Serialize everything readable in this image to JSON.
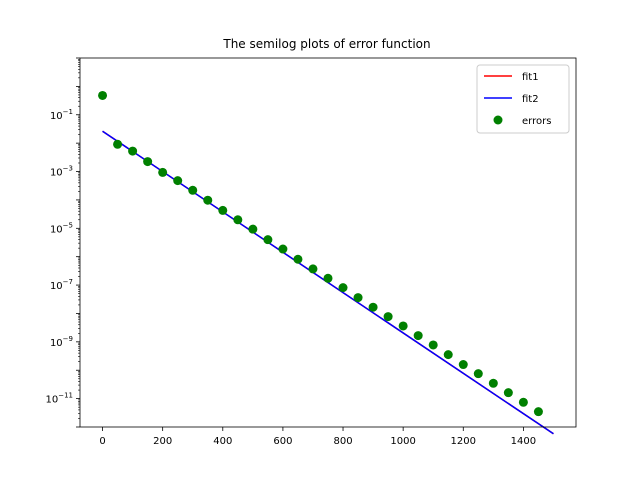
{
  "chart_data": {
    "type": "line",
    "title": "The semilog plots of error function",
    "xlabel": "",
    "ylabel": "",
    "xlim": [
      -75,
      1575
    ],
    "ylim": [
      1e-12,
      10
    ],
    "yscale": "log",
    "grid": false,
    "legend_position": "top-right",
    "x_ticks": [
      0,
      200,
      400,
      600,
      800,
      1000,
      1200,
      1400
    ],
    "x_tick_labels": [
      "0",
      "200",
      "400",
      "600",
      "800",
      "1000",
      "1200",
      "1400"
    ],
    "y_ticks": [
      -11,
      -9,
      -7,
      -5,
      -3,
      -1
    ],
    "y_tick_labels": [
      {
        "base": "10",
        "exp": "−11"
      },
      {
        "base": "10",
        "exp": "−9"
      },
      {
        "base": "10",
        "exp": "−7"
      },
      {
        "base": "10",
        "exp": "−5"
      },
      {
        "base": "10",
        "exp": "−3"
      },
      {
        "base": "10",
        "exp": "−1"
      }
    ],
    "series": [
      {
        "name": "fit1",
        "kind": "line",
        "color": "#ff0000",
        "x": [
          0,
          1500
        ],
        "log10_y": [
          -1.58,
          -12.24
        ]
      },
      {
        "name": "fit2",
        "kind": "line",
        "color": "#0000ff",
        "x": [
          0,
          1500
        ],
        "log10_y": [
          -1.58,
          -12.24
        ]
      },
      {
        "name": "errors",
        "kind": "scatter",
        "color": "#008000",
        "x": [
          0,
          50,
          100,
          150,
          200,
          250,
          300,
          350,
          400,
          450,
          500,
          550,
          600,
          650,
          700,
          750,
          800,
          850,
          900,
          950,
          1000,
          1050,
          1100,
          1150,
          1200,
          1250,
          1300,
          1350,
          1400,
          1450
        ],
        "log10_y": [
          -0.32,
          -2.04,
          -2.28,
          -2.65,
          -3.03,
          -3.32,
          -3.66,
          -4.01,
          -4.37,
          -4.7,
          -5.03,
          -5.4,
          -5.73,
          -6.09,
          -6.43,
          -6.76,
          -7.09,
          -7.44,
          -7.78,
          -8.11,
          -8.44,
          -8.78,
          -9.11,
          -9.45,
          -9.8,
          -10.12,
          -10.46,
          -10.79,
          -11.13,
          -11.46
        ]
      }
    ]
  }
}
